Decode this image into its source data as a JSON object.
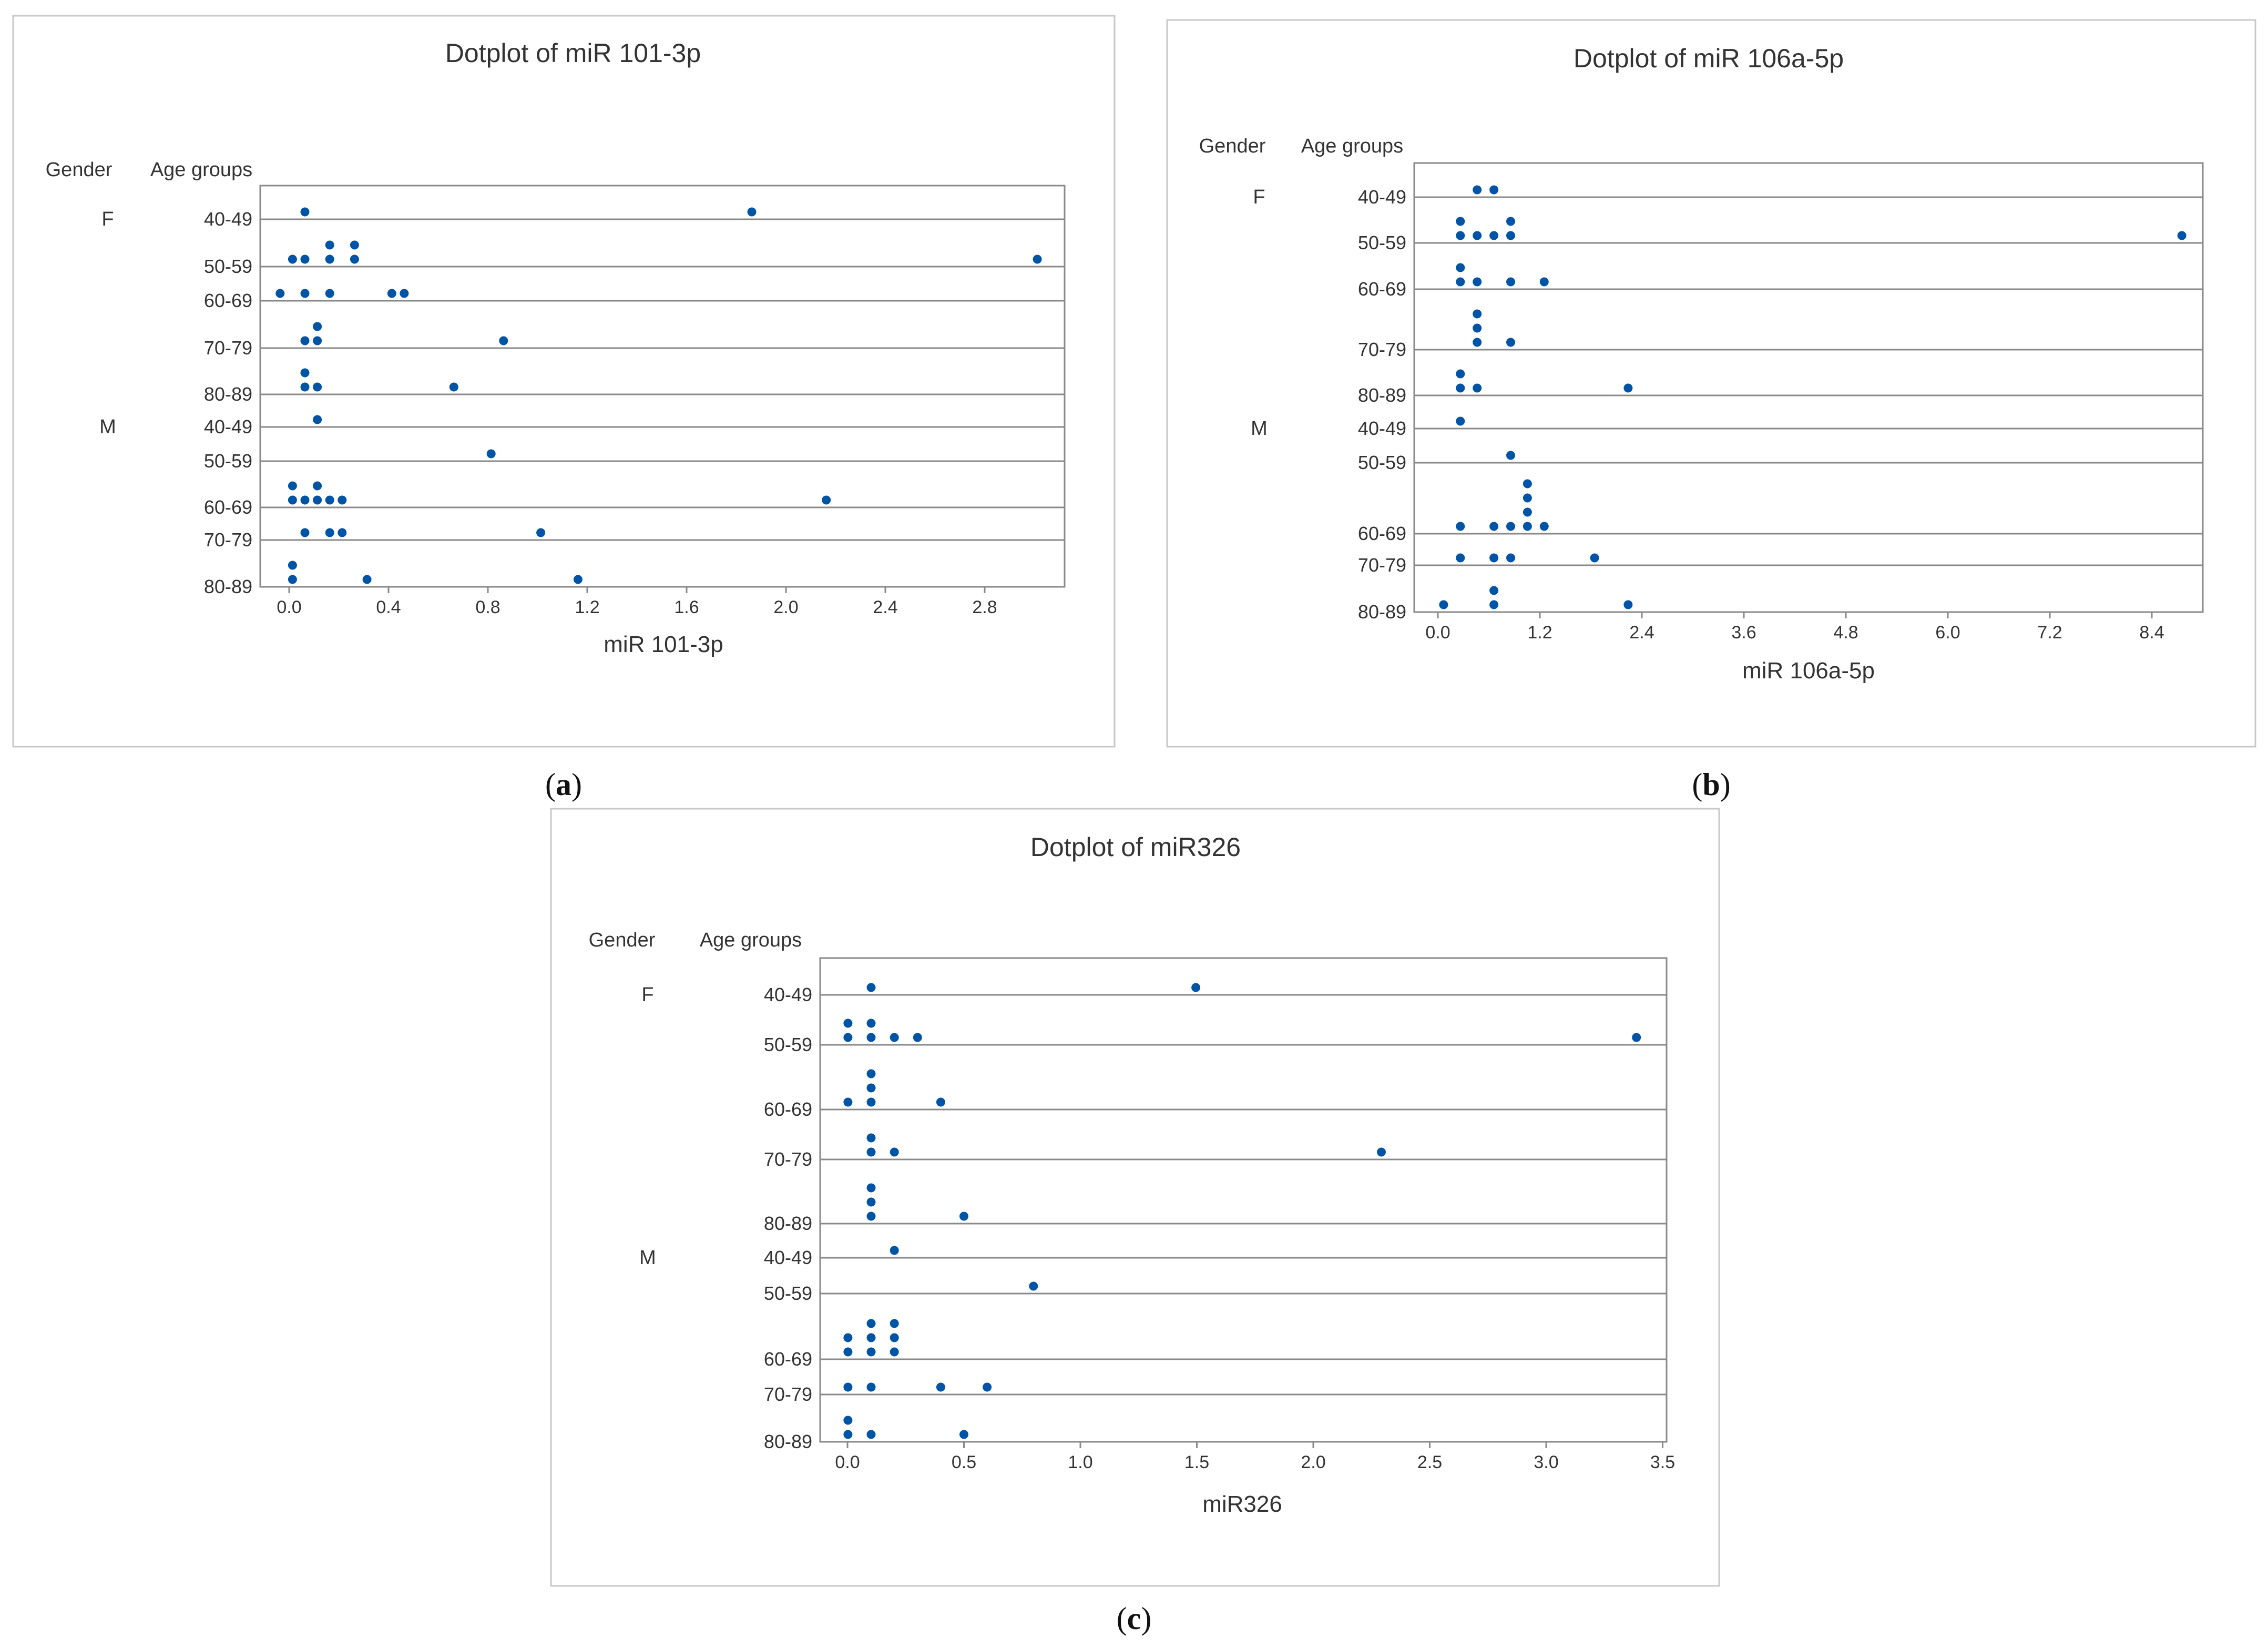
{
  "marker_color": "#0054a6",
  "panel_captions": [
    {
      "open": "(",
      "letter": "a",
      "close": ")"
    },
    {
      "open": "(",
      "letter": "b",
      "close": ")"
    },
    {
      "open": "(",
      "letter": "c",
      "close": ")"
    }
  ],
  "chart_data": [
    {
      "type": "scatter",
      "title": "Dotplot of miR 101-3p",
      "xlabel": "miR 101-3p",
      "header_gender": "Gender",
      "header_age": "Age groups",
      "xlim": [
        -0.08,
        3.16
      ],
      "xticks": [
        "0.0",
        "0.4",
        "0.8",
        "1.2",
        "1.6",
        "2.0",
        "2.4",
        "2.8"
      ],
      "groups": [
        {
          "gender": "F",
          "age": "40-49",
          "points": [
            [
              0.1,
              1
            ],
            [
              1.9,
              1
            ]
          ]
        },
        {
          "gender": "",
          "age": "50-59",
          "points": [
            [
              0.05,
              1
            ],
            [
              0.1,
              1
            ],
            [
              0.2,
              1
            ],
            [
              0.2,
              2
            ],
            [
              0.3,
              1
            ],
            [
              0.3,
              2
            ],
            [
              3.05,
              1
            ]
          ]
        },
        {
          "gender": "",
          "age": "60-69",
          "points": [
            [
              0.0,
              1
            ],
            [
              0.1,
              1
            ],
            [
              0.2,
              1
            ],
            [
              0.45,
              1
            ],
            [
              0.5,
              1
            ]
          ]
        },
        {
          "gender": "",
          "age": "70-79",
          "points": [
            [
              0.1,
              1
            ],
            [
              0.15,
              1
            ],
            [
              0.15,
              2
            ],
            [
              0.9,
              1
            ]
          ]
        },
        {
          "gender": "",
          "age": "80-89",
          "points": [
            [
              0.1,
              1
            ],
            [
              0.1,
              2
            ],
            [
              0.15,
              1
            ],
            [
              0.7,
              1
            ]
          ]
        },
        {
          "gender": "M",
          "age": "40-49",
          "points": [
            [
              0.15,
              1
            ]
          ]
        },
        {
          "gender": "",
          "age": "50-59",
          "points": [
            [
              0.85,
              1
            ]
          ]
        },
        {
          "gender": "",
          "age": "60-69",
          "points": [
            [
              0.05,
              1
            ],
            [
              0.05,
              2
            ],
            [
              0.1,
              1
            ],
            [
              0.15,
              1
            ],
            [
              0.15,
              2
            ],
            [
              0.2,
              1
            ],
            [
              0.25,
              1
            ],
            [
              2.2,
              1
            ]
          ]
        },
        {
          "gender": "",
          "age": "70-79",
          "points": [
            [
              0.1,
              1
            ],
            [
              0.2,
              1
            ],
            [
              0.25,
              1
            ],
            [
              1.05,
              1
            ]
          ]
        },
        {
          "gender": "",
          "age": "80-89",
          "points": [
            [
              0.05,
              1
            ],
            [
              0.05,
              2
            ],
            [
              0.35,
              1
            ],
            [
              1.2,
              1
            ]
          ]
        }
      ]
    },
    {
      "type": "scatter",
      "title": "Dotplot of miR 106a-5p",
      "xlabel": "miR 106a-5p",
      "header_gender": "Gender",
      "header_age": "Age groups",
      "xlim": [
        -0.35,
        9.05
      ],
      "xticks": [
        "0.0",
        "1.2",
        "2.4",
        "3.6",
        "4.8",
        "6.0",
        "7.2",
        "8.4"
      ],
      "groups": [
        {
          "gender": "F",
          "age": "40-49",
          "points": [
            [
              0.4,
              1
            ],
            [
              0.6,
              1
            ]
          ]
        },
        {
          "gender": "",
          "age": "50-59",
          "points": [
            [
              0.2,
              1
            ],
            [
              0.2,
              2
            ],
            [
              0.4,
              1
            ],
            [
              0.6,
              1
            ],
            [
              0.8,
              1
            ],
            [
              0.8,
              2
            ],
            [
              8.8,
              1
            ]
          ]
        },
        {
          "gender": "",
          "age": "60-69",
          "points": [
            [
              0.2,
              1
            ],
            [
              0.2,
              2
            ],
            [
              0.4,
              1
            ],
            [
              0.8,
              1
            ],
            [
              1.2,
              1
            ]
          ]
        },
        {
          "gender": "",
          "age": "70-79",
          "points": [
            [
              0.4,
              1
            ],
            [
              0.4,
              2
            ],
            [
              0.4,
              3
            ],
            [
              0.8,
              1
            ]
          ]
        },
        {
          "gender": "",
          "age": "80-89",
          "points": [
            [
              0.2,
              1
            ],
            [
              0.2,
              2
            ],
            [
              0.4,
              1
            ],
            [
              2.2,
              1
            ]
          ]
        },
        {
          "gender": "M",
          "age": "40-49",
          "points": [
            [
              0.2,
              1
            ]
          ]
        },
        {
          "gender": "",
          "age": "50-59",
          "points": [
            [
              0.8,
              1
            ]
          ]
        },
        {
          "gender": "",
          "age": "60-69",
          "points": [
            [
              0.2,
              1
            ],
            [
              0.6,
              1
            ],
            [
              0.8,
              1
            ],
            [
              1.0,
              1
            ],
            [
              1.0,
              2
            ],
            [
              1.0,
              3
            ],
            [
              1.0,
              4
            ],
            [
              1.2,
              1
            ]
          ]
        },
        {
          "gender": "",
          "age": "70-79",
          "points": [
            [
              0.2,
              1
            ],
            [
              0.6,
              1
            ],
            [
              0.8,
              1
            ],
            [
              1.8,
              1
            ]
          ]
        },
        {
          "gender": "",
          "age": "80-89",
          "points": [
            [
              0.0,
              1
            ],
            [
              0.6,
              1
            ],
            [
              0.6,
              2
            ],
            [
              2.2,
              1
            ]
          ]
        }
      ]
    },
    {
      "type": "scatter",
      "title": "Dotplot of miR326",
      "xlabel": "miR326",
      "header_gender": "Gender",
      "header_age": "Age groups",
      "xlim": [
        -0.12,
        3.53
      ],
      "xticks": [
        "0.0",
        "0.5",
        "1.0",
        "1.5",
        "2.0",
        "2.5",
        "3.0",
        "3.5"
      ],
      "groups": [
        {
          "gender": "F",
          "age": "40-49",
          "points": [
            [
              0.1,
              1
            ],
            [
              1.5,
              1
            ]
          ]
        },
        {
          "gender": "",
          "age": "50-59",
          "points": [
            [
              0.0,
              1
            ],
            [
              0.0,
              2
            ],
            [
              0.1,
              1
            ],
            [
              0.1,
              2
            ],
            [
              0.2,
              1
            ],
            [
              0.3,
              1
            ],
            [
              3.4,
              1
            ]
          ]
        },
        {
          "gender": "",
          "age": "60-69",
          "points": [
            [
              0.0,
              1
            ],
            [
              0.1,
              1
            ],
            [
              0.1,
              2
            ],
            [
              0.1,
              3
            ],
            [
              0.4,
              1
            ]
          ]
        },
        {
          "gender": "",
          "age": "70-79",
          "points": [
            [
              0.1,
              1
            ],
            [
              0.1,
              2
            ],
            [
              0.2,
              1
            ],
            [
              2.3,
              1
            ]
          ]
        },
        {
          "gender": "",
          "age": "80-89",
          "points": [
            [
              0.1,
              1
            ],
            [
              0.1,
              2
            ],
            [
              0.1,
              3
            ],
            [
              0.5,
              1
            ]
          ]
        },
        {
          "gender": "M",
          "age": "40-49",
          "points": [
            [
              0.2,
              1
            ]
          ]
        },
        {
          "gender": "",
          "age": "50-59",
          "points": [
            [
              0.8,
              1
            ]
          ]
        },
        {
          "gender": "",
          "age": "60-69",
          "points": [
            [
              0.0,
              1
            ],
            [
              0.0,
              2
            ],
            [
              0.1,
              1
            ],
            [
              0.1,
              2
            ],
            [
              0.1,
              3
            ],
            [
              0.2,
              1
            ],
            [
              0.2,
              2
            ],
            [
              0.2,
              3
            ]
          ]
        },
        {
          "gender": "",
          "age": "70-79",
          "points": [
            [
              0.0,
              1
            ],
            [
              0.1,
              1
            ],
            [
              0.4,
              1
            ],
            [
              0.6,
              1
            ]
          ]
        },
        {
          "gender": "",
          "age": "80-89",
          "points": [
            [
              0.0,
              1
            ],
            [
              0.0,
              2
            ],
            [
              0.1,
              1
            ],
            [
              0.5,
              1
            ]
          ]
        }
      ]
    }
  ]
}
